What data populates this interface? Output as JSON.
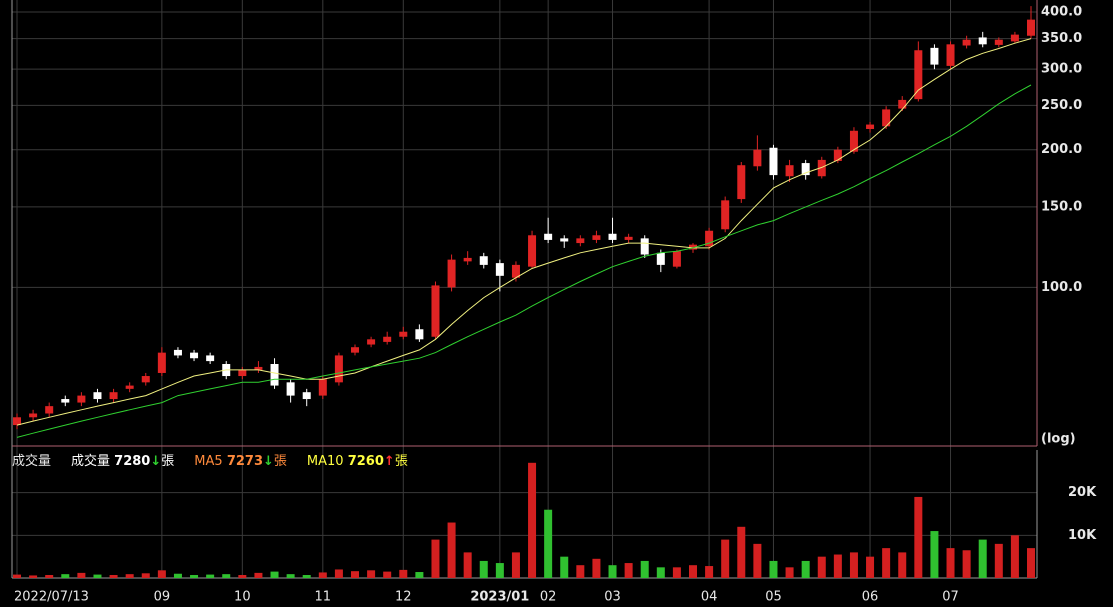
{
  "chart_data": [
    {
      "type": "candlestick",
      "log_scale": true,
      "log_label": "(log)",
      "ylim": [
        45,
        425
      ],
      "yticks": [
        {
          "value": 100,
          "label": "100.0"
        },
        {
          "value": 150,
          "label": "150.0"
        },
        {
          "value": 200,
          "label": "200.0"
        },
        {
          "value": 250,
          "label": "250.0"
        },
        {
          "value": 300,
          "label": "300.0"
        },
        {
          "value": 350,
          "label": "350.0"
        },
        {
          "value": 400,
          "label": "400.0"
        }
      ],
      "up_color": "#e02424",
      "down_color": "#ffffff",
      "grid": true,
      "open": [
        50,
        52,
        53,
        57,
        56,
        59,
        57,
        60,
        62,
        65,
        73,
        72,
        71,
        68,
        64,
        66,
        68,
        62,
        59,
        58,
        62,
        72,
        75,
        76,
        78,
        81,
        78,
        100,
        114,
        117,
        113,
        105,
        111,
        131,
        128,
        125,
        127,
        131,
        127,
        128,
        119,
        111,
        121,
        123,
        134,
        156,
        184,
        202,
        175,
        187,
        175,
        189,
        198,
        222,
        225,
        246,
        258,
        334,
        305,
        338,
        352,
        339,
        345,
        355
      ],
      "high": [
        53,
        54,
        56,
        58,
        59,
        60,
        60,
        62,
        65,
        74,
        74,
        73,
        72,
        69,
        67,
        69,
        70,
        63,
        60,
        64,
        72,
        75,
        78,
        80,
        82,
        83,
        103,
        118,
        120,
        119,
        115,
        114,
        133,
        142,
        130,
        130,
        133,
        142,
        131,
        130,
        121,
        121,
        125,
        135,
        158,
        188,
        215,
        205,
        190,
        190,
        193,
        203,
        224,
        230,
        249,
        262,
        345,
        340,
        345,
        355,
        362,
        352,
        362,
        412
      ],
      "low": [
        49,
        51,
        52,
        55,
        55,
        56,
        56,
        59,
        61,
        64,
        70,
        69,
        68,
        63,
        63,
        65,
        60,
        56,
        55,
        57,
        61,
        71,
        74,
        75,
        77,
        76,
        77,
        98,
        112,
        110,
        98,
        103,
        110,
        125,
        122,
        123,
        125,
        125,
        125,
        116,
        108,
        110,
        119,
        121,
        132,
        153,
        180,
        172,
        170,
        172,
        173,
        187,
        196,
        218,
        222,
        243,
        255,
        300,
        300,
        333,
        335,
        335,
        342,
        350
      ],
      "close": [
        52,
        53,
        55,
        56,
        58,
        57,
        59,
        61,
        64,
        72,
        71,
        70,
        69,
        64,
        66,
        67,
        61,
        58,
        57,
        63,
        71,
        74,
        77,
        78,
        80,
        77,
        101,
        115,
        116,
        112,
        106,
        112,
        130,
        127,
        126,
        128,
        130,
        127,
        129,
        118,
        112,
        120,
        124,
        133,
        155,
        185,
        200,
        176,
        185,
        176,
        190,
        200,
        220,
        227,
        245,
        257,
        330,
        307,
        340,
        348,
        340,
        348,
        357,
        385
      ],
      "series": [
        {
          "color": "#f0f080",
          "values": [
            50,
            51,
            52,
            53,
            54,
            55,
            56,
            57,
            58,
            60,
            62,
            64,
            65,
            66,
            66,
            66,
            65,
            64,
            63,
            63,
            64,
            65,
            67,
            69,
            71,
            73,
            77,
            83,
            89,
            95,
            100,
            105,
            110,
            113,
            116,
            119,
            121,
            123,
            125,
            125,
            124,
            123,
            122,
            122,
            128,
            140,
            152,
            165,
            172,
            178,
            183,
            190,
            200,
            210,
            225,
            245,
            270,
            285,
            300,
            315,
            325,
            333,
            342,
            350
          ]
        },
        {
          "color": "#30d030",
          "values": [
            47,
            48,
            49,
            50,
            51,
            52,
            53,
            54,
            55,
            56,
            58,
            59,
            60,
            61,
            62,
            62,
            63,
            63,
            63,
            64,
            65,
            66,
            67,
            68,
            69,
            70,
            72,
            75,
            78,
            81,
            84,
            87,
            91,
            95,
            99,
            103,
            107,
            111,
            114,
            117,
            119,
            120,
            122,
            125,
            129,
            133,
            137,
            140,
            145,
            150,
            155,
            160,
            166,
            173,
            180,
            188,
            196,
            205,
            214,
            225,
            238,
            252,
            265,
            277
          ]
        }
      ]
    },
    {
      "type": "bar",
      "ylim": [
        0,
        30000
      ],
      "yticks": [
        {
          "value": 10000,
          "label": "10K"
        },
        {
          "value": 20000,
          "label": "20K"
        }
      ],
      "categories": [
        "2022/07/13",
        null,
        null,
        null,
        null,
        null,
        null,
        null,
        null,
        "09",
        null,
        null,
        null,
        null,
        "10",
        null,
        null,
        null,
        null,
        "11",
        null,
        null,
        null,
        null,
        "12",
        null,
        null,
        null,
        null,
        null,
        "2023/01",
        null,
        null,
        "02",
        null,
        null,
        null,
        "03",
        null,
        null,
        null,
        null,
        null,
        "04",
        null,
        null,
        null,
        "05",
        null,
        null,
        null,
        null,
        null,
        "06",
        null,
        null,
        null,
        null,
        "07",
        null,
        null,
        null,
        null,
        null
      ],
      "up_color": "#d42020",
      "down_color": "#30c030",
      "values": [
        800,
        600,
        700,
        900,
        1200,
        800,
        700,
        900,
        1100,
        1800,
        1000,
        700,
        800,
        900,
        700,
        1200,
        1500,
        900,
        700,
        1300,
        2000,
        1600,
        1800,
        1500,
        1900,
        1400,
        9000,
        13000,
        6000,
        4000,
        3500,
        6000,
        27000,
        16000,
        5000,
        3000,
        4500,
        3000,
        3500,
        4000,
        2500,
        2500,
        3000,
        2800,
        9000,
        12000,
        8000,
        4000,
        2500,
        4000,
        5000,
        5500,
        6000,
        5000,
        7000,
        6000,
        19000,
        11000,
        7000,
        6500,
        9000,
        8000,
        10000,
        7000
      ],
      "header": {
        "title": "成交量",
        "items": [
          {
            "name": "成交量",
            "value": 7280,
            "arrow": "↓",
            "unit": "張",
            "color": "#ffffff",
            "arrow_color": "#30d030"
          },
          {
            "name": "MA5",
            "value": 7273,
            "arrow": "↓",
            "unit": "張",
            "color": "#ff8a3c",
            "arrow_color": "#30d030"
          },
          {
            "name": "MA10",
            "value": 7260,
            "arrow": "↑",
            "unit": "張",
            "color": "#ffff40",
            "arrow_color": "#ff3030"
          }
        ]
      }
    }
  ]
}
